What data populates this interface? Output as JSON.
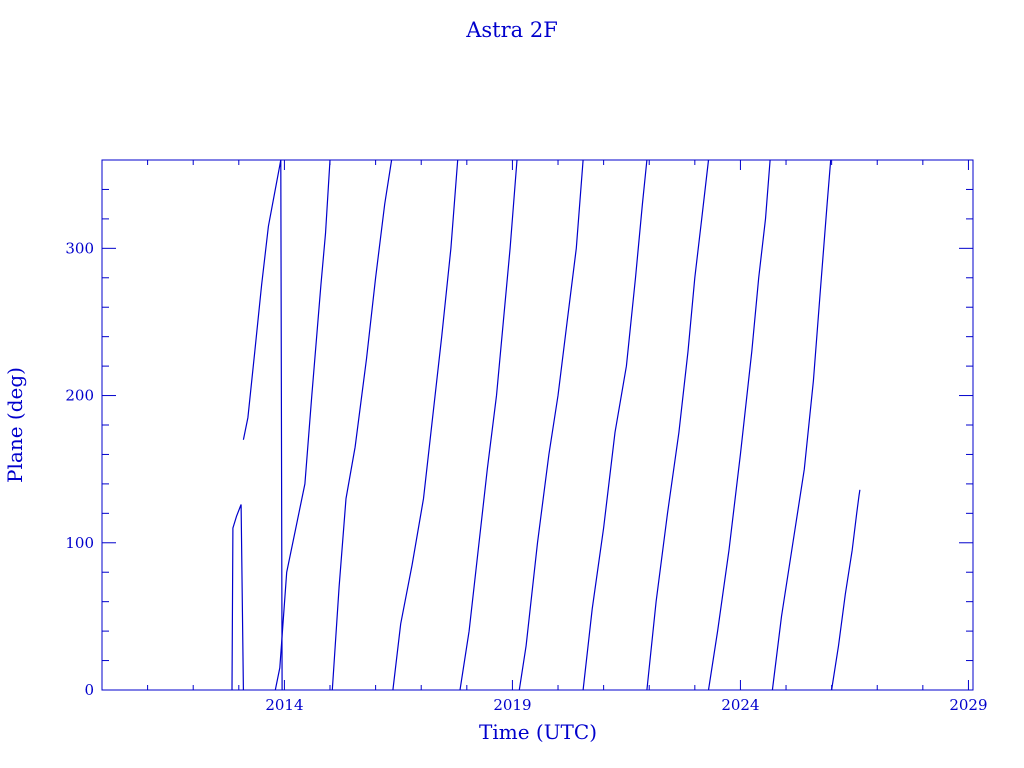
{
  "chart_data": {
    "type": "line",
    "title": "Astra 2F",
    "xlabel": "Time (UTC)",
    "ylabel": "Plane (deg)",
    "xlim": [
      2010.0,
      2029.1
    ],
    "ylim": [
      0,
      360
    ],
    "x_ticks": [
      2014,
      2019,
      2024,
      2029
    ],
    "x_tick_labels": [
      "2014",
      "2019",
      "2024",
      "2029"
    ],
    "y_ticks": [
      0,
      100,
      200,
      300
    ],
    "y_tick_labels": [
      "0",
      "100",
      "200",
      "300"
    ],
    "grid": false,
    "color": "#0000cc",
    "series": [
      {
        "x": [
          2012.85,
          2012.87,
          2012.95,
          2013.05,
          2013.1
        ],
        "y": [
          0,
          110,
          118,
          126,
          0
        ]
      },
      {
        "x": [
          2013.1,
          2013.2,
          2013.35,
          2013.5,
          2013.65,
          2013.8,
          2013.92,
          2013.95
        ],
        "y": [
          170,
          185,
          230,
          275,
          315,
          340,
          360,
          0
        ]
      },
      {
        "x": [
          2013.8,
          2013.9,
          2014.05,
          2014.25,
          2014.45,
          2014.6,
          2014.8,
          2014.9,
          2015.0
        ],
        "y": [
          0,
          15,
          80,
          110,
          140,
          200,
          275,
          310,
          360
        ]
      },
      {
        "x": [
          2015.05,
          2015.2,
          2015.35,
          2015.55,
          2015.8,
          2016.0,
          2016.2,
          2016.35
        ],
        "y": [
          0,
          70,
          130,
          165,
          225,
          280,
          330,
          360
        ]
      },
      {
        "x": [
          2016.38,
          2016.55,
          2016.8,
          2017.05,
          2017.25,
          2017.45,
          2017.65,
          2017.8
        ],
        "y": [
          0,
          45,
          85,
          130,
          185,
          240,
          300,
          360
        ]
      },
      {
        "x": [
          2017.85,
          2018.05,
          2018.25,
          2018.45,
          2018.65,
          2018.8,
          2018.95,
          2019.1
        ],
        "y": [
          0,
          40,
          95,
          150,
          200,
          250,
          300,
          360
        ]
      },
      {
        "x": [
          2019.15,
          2019.3,
          2019.55,
          2019.8,
          2020.0,
          2020.2,
          2020.4,
          2020.55
        ],
        "y": [
          0,
          30,
          100,
          160,
          200,
          250,
          300,
          360
        ]
      },
      {
        "x": [
          2020.55,
          2020.75,
          2021.0,
          2021.25,
          2021.5,
          2021.7,
          2021.85,
          2021.95
        ],
        "y": [
          0,
          55,
          110,
          175,
          220,
          280,
          330,
          360
        ]
      },
      {
        "x": [
          2021.95,
          2022.15,
          2022.4,
          2022.65,
          2022.85,
          2023.0,
          2023.15,
          2023.3
        ],
        "y": [
          0,
          60,
          120,
          175,
          230,
          280,
          320,
          360
        ]
      },
      {
        "x": [
          2023.3,
          2023.5,
          2023.75,
          2024.0,
          2024.25,
          2024.4,
          2024.55,
          2024.65
        ],
        "y": [
          0,
          40,
          95,
          160,
          230,
          280,
          320,
          360
        ]
      },
      {
        "x": [
          2024.7,
          2024.9,
          2025.15,
          2025.4,
          2025.6,
          2025.75,
          2025.9,
          2025.98
        ],
        "y": [
          0,
          50,
          100,
          150,
          210,
          270,
          330,
          360
        ]
      },
      {
        "x": [
          2026.0,
          2026.15,
          2026.3,
          2026.45,
          2026.55,
          2026.6,
          2026.62
        ],
        "y": [
          0,
          30,
          65,
          95,
          120,
          132,
          136
        ]
      }
    ]
  }
}
